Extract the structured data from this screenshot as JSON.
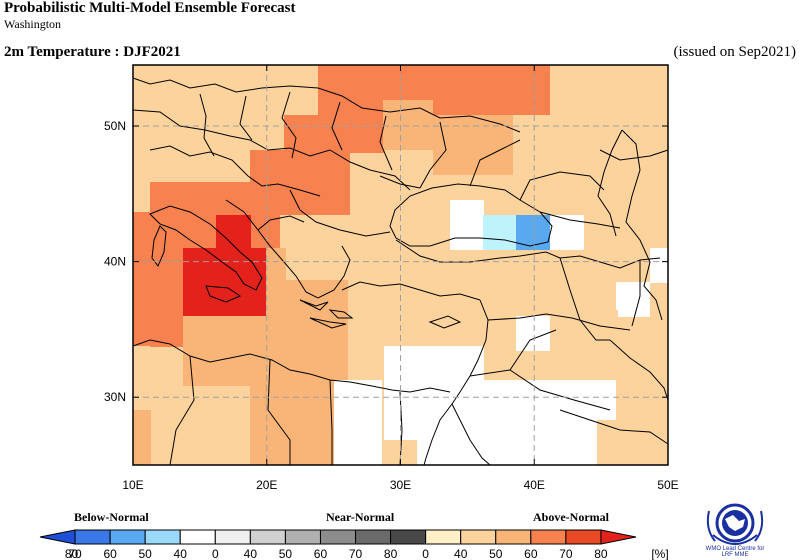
{
  "header": {
    "title": "Probabilistic Multi-Model Ensemble Forecast",
    "subtitle": "Washington",
    "variable": "2m Temperature : DJF2021",
    "issued": "(issued on Sep2021)"
  },
  "map": {
    "lat_range": [
      25,
      54.5
    ],
    "lon_range": [
      10,
      50
    ],
    "lat_ticks": [
      "30N",
      "40N",
      "50N"
    ],
    "lon_ticks": [
      "10E",
      "20E",
      "30E",
      "40E",
      "50E"
    ],
    "grid": "dashed",
    "region": "Europe, Mediterranean, Middle East",
    "colors": {
      "an40": "#fcd39c",
      "an50": "#f9b578",
      "an60": "#f7824f",
      "an70": "#e84a25",
      "an80": "#e2221b",
      "bn40": "#bff3fb",
      "bn50": "#59a8f0",
      "white": "#ffffff"
    }
  },
  "legend": {
    "categories": [
      "Below-Normal",
      "Near-Normal",
      "Above-Normal"
    ],
    "labels": [
      "80",
      "70",
      "60",
      "50",
      "40",
      "0",
      "40",
      "50",
      "60",
      "70",
      "80",
      "0",
      "40",
      "50",
      "60",
      "70",
      "80"
    ],
    "unit": "[%]",
    "colors": [
      "#1f4fd6",
      "#3a78e8",
      "#59a8f0",
      "#9ad9fa",
      "#ffffff",
      "#f0f0f0",
      "#d0d0d0",
      "#b0b0b0",
      "#8c8c8c",
      "#6a6a6a",
      "#484848",
      "#fff0c8",
      "#fcd39c",
      "#f9b578",
      "#f7824f",
      "#e84a25",
      "#e2221b"
    ]
  },
  "logo": {
    "line1": "WMO Lead Centre for",
    "line2": "LRF MME"
  }
}
